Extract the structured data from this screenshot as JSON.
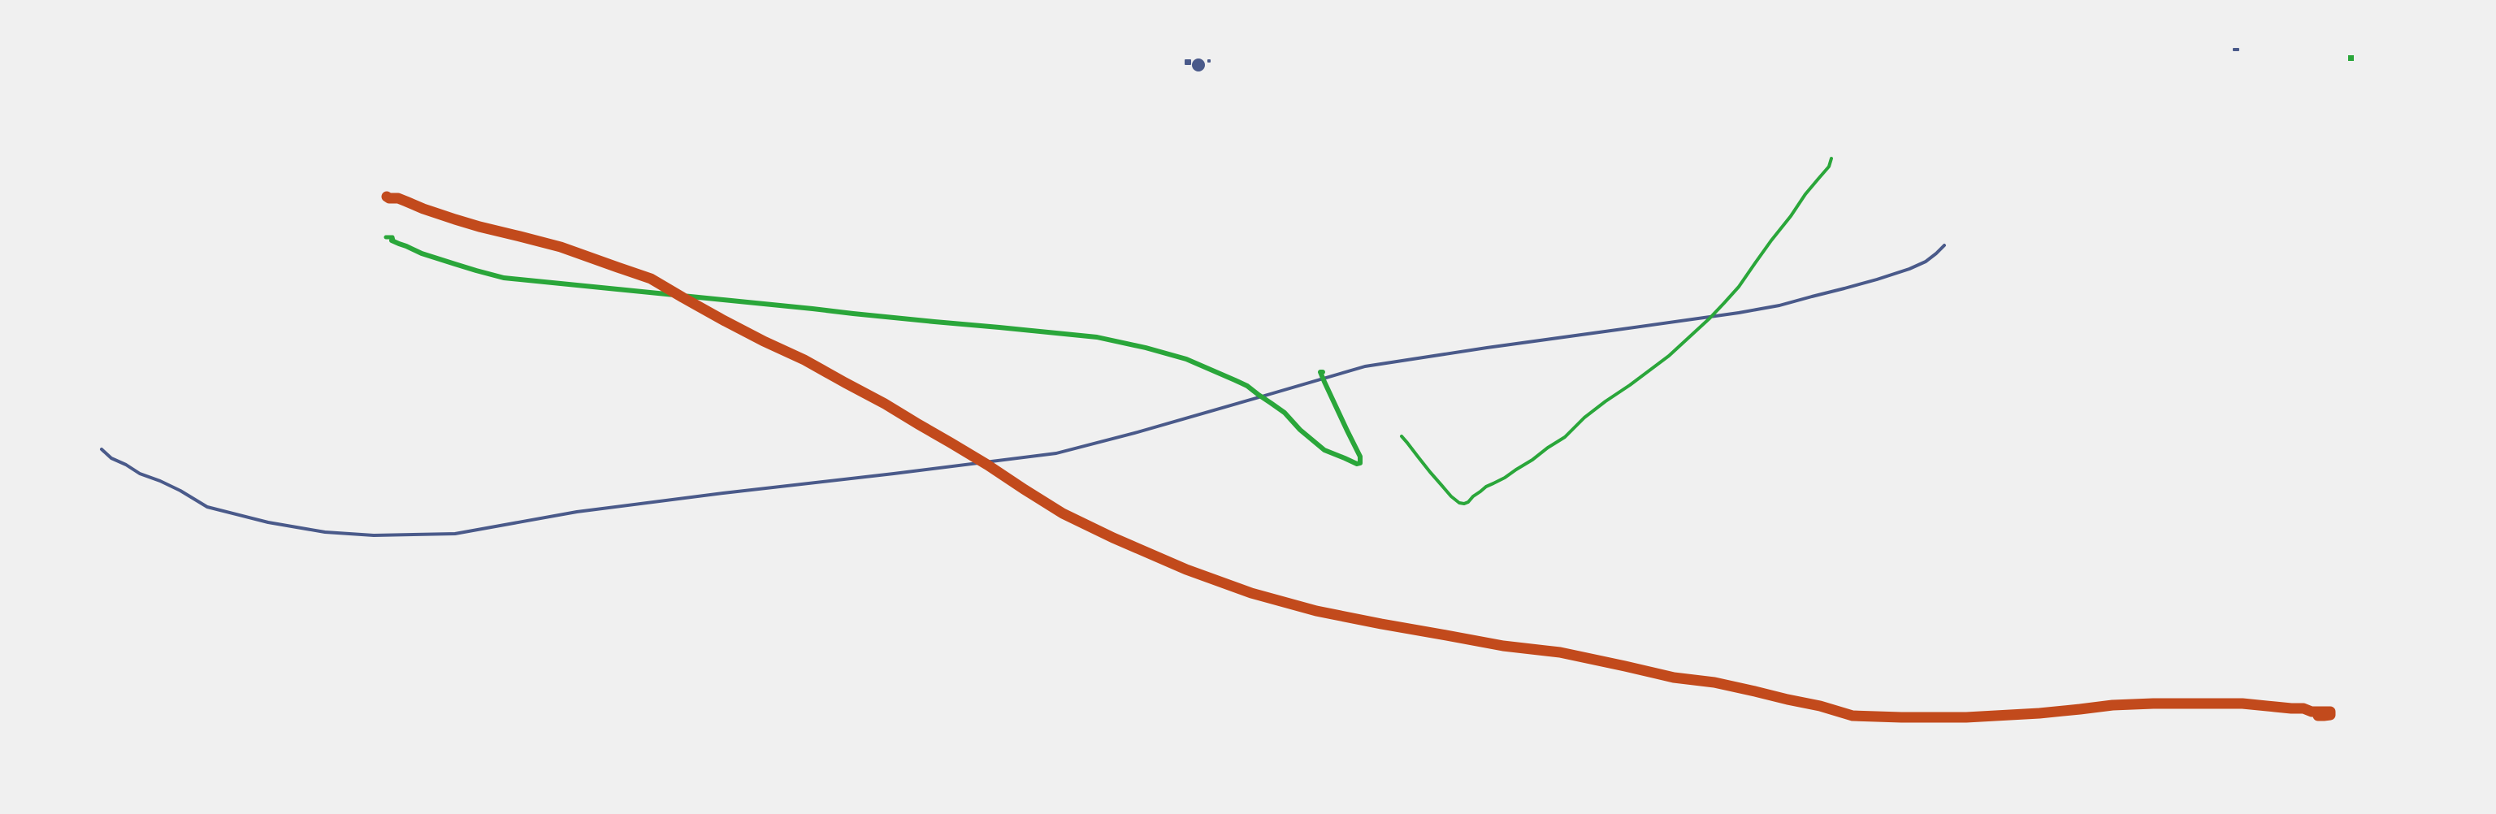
{
  "canvas": {
    "background_color": "#f0f0f0"
  },
  "colors": {
    "slate_stroke": "#4a5a8a",
    "green_stroke": "#2aa63a",
    "orange_stroke": "#c24a1c",
    "dot_fill": "#4a5a8a"
  },
  "elements": [
    {
      "name": "slate-stroke",
      "kind": "stroke",
      "color_key": "slate_stroke"
    },
    {
      "name": "green-stroke-main",
      "kind": "stroke",
      "color_key": "green_stroke"
    },
    {
      "name": "green-stroke-hook",
      "kind": "stroke",
      "color_key": "green_stroke"
    },
    {
      "name": "green-stroke-curve",
      "kind": "stroke",
      "color_key": "green_stroke"
    },
    {
      "name": "orange-stroke",
      "kind": "stroke",
      "color_key": "orange_stroke"
    },
    {
      "name": "slate-dot",
      "kind": "dot",
      "color_key": "dot_fill"
    },
    {
      "name": "slate-dash-mark",
      "kind": "mark",
      "color_key": "slate_stroke"
    },
    {
      "name": "green-dot-mark",
      "kind": "mark",
      "color_key": "green_stroke"
    }
  ]
}
